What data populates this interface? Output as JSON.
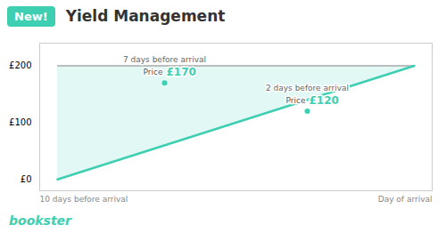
{
  "chart_data": {
    "type": "line",
    "title": "Yield Management",
    "badge": "New!",
    "brand": "bookster",
    "x": [
      0,
      10
    ],
    "series": [
      {
        "color": "#aaaaaa",
        "values": [
          200,
          200
        ]
      },
      {
        "color": "#3ecfb2",
        "values": [
          0,
          200
        ]
      }
    ],
    "xlim": [
      -0.5,
      10.5
    ],
    "ylim": [
      -20,
      240
    ],
    "yticks": [
      {
        "value": 0,
        "label": "£0"
      },
      {
        "value": 100,
        "label": "£100"
      },
      {
        "value": 200,
        "label": "£200"
      }
    ],
    "tick_labels": "y",
    "grid": false,
    "x_label_left": "10 days before arrival",
    "x_label_right": "Day of arrival",
    "color": "#3ecfb2",
    "annotations": [
      {
        "x": 3,
        "y": 170,
        "text": "7 days before arrival",
        "price_label": "Price",
        "price": "£170"
      },
      {
        "x": 7,
        "y": 120,
        "text": "2 days before arrival",
        "price_label": "Price",
        "price": "£120"
      }
    ]
  }
}
